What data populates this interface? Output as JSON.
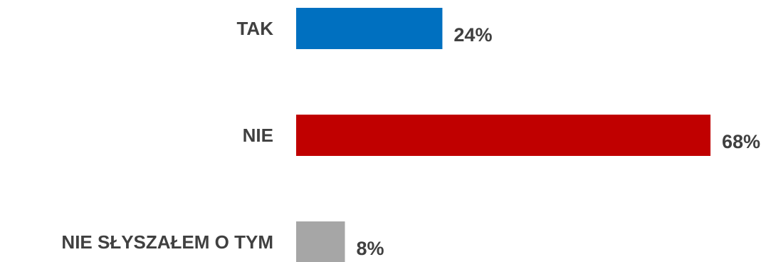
{
  "chart_data": {
    "type": "bar",
    "orientation": "horizontal",
    "categories": [
      "TAK",
      "NIE",
      "NIE SŁYSZAŁEM O TYM"
    ],
    "values": [
      24,
      68,
      8
    ],
    "value_labels": [
      "24%",
      "68%",
      "8%"
    ],
    "unit": "%",
    "colors": [
      "#0070c0",
      "#c00000",
      "#a6a6a6"
    ],
    "xlim": [
      0,
      68
    ],
    "grid": false,
    "legend": "none"
  }
}
